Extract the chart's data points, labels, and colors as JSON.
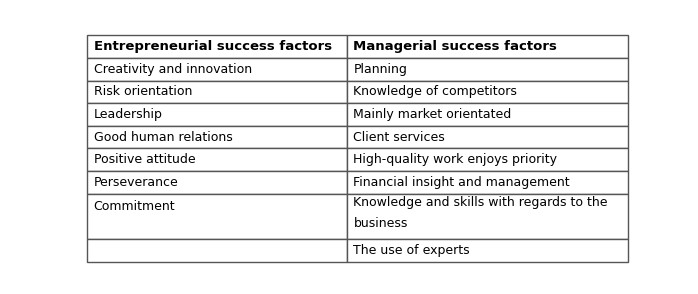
{
  "col1_header": "Entrepreneurial success factors",
  "col2_header": "Managerial success factors",
  "rows": [
    [
      "Creativity and innovation",
      "Planning"
    ],
    [
      "Risk orientation",
      "Knowledge of competitors"
    ],
    [
      "Leadership",
      "Mainly market orientated"
    ],
    [
      "Good human relations",
      "Client services"
    ],
    [
      "Positive attitude",
      "High-quality work enjoys priority"
    ],
    [
      "Perseverance",
      "Financial insight and management"
    ],
    [
      "Commitment",
      "Knowledge and skills with regards to the\nbusiness"
    ],
    [
      "",
      "The use of experts"
    ]
  ],
  "header_bg": "#ffffff",
  "row_bg": "#ffffff",
  "border_color": "#555555",
  "header_font_size": 9.5,
  "body_font_size": 9.0,
  "fig_width": 6.98,
  "fig_height": 2.94
}
